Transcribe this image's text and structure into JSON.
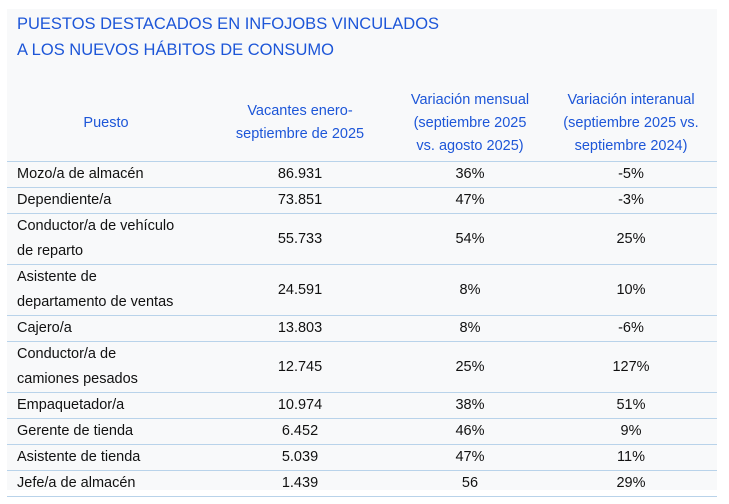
{
  "title": [
    "PUESTOS DESTACADOS EN INFOJOBS VINCULADOS",
    "A LOS NUEVOS HÁBITOS DE CONSUMO"
  ],
  "headers": [
    [
      "Puesto"
    ],
    [
      "Vacantes enero-",
      "septiembre de 2025"
    ],
    [
      "Variación mensual",
      "(septiembre 2025",
      "vs. agosto 2025)"
    ],
    [
      "Variación interanual",
      "(septiembre 2025 vs.",
      "septiembre 2024)"
    ]
  ],
  "rows": [
    {
      "puesto": [
        "Mozo/a de almacén"
      ],
      "vacantes": "86.931",
      "mensual": "36%",
      "interanual": "-5%"
    },
    {
      "puesto": [
        "Dependiente/a"
      ],
      "vacantes": "73.851",
      "mensual": "47%",
      "interanual": "-3%"
    },
    {
      "puesto": [
        "Conductor/a de vehículo",
        "de reparto"
      ],
      "vacantes": "55.733",
      "mensual": "54%",
      "interanual": "25%"
    },
    {
      "puesto": [
        "Asistente de",
        "departamento de ventas"
      ],
      "vacantes": "24.591",
      "mensual": "8%",
      "interanual": "10%"
    },
    {
      "puesto": [
        "Cajero/a"
      ],
      "vacantes": "13.803",
      "mensual": "8%",
      "interanual": "-6%"
    },
    {
      "puesto": [
        "Conductor/a de",
        "camiones pesados"
      ],
      "vacantes": "12.745",
      "mensual": "25%",
      "interanual": "127%"
    },
    {
      "puesto": [
        "Empaquetador/a"
      ],
      "vacantes": "10.974",
      "mensual": "38%",
      "interanual": "51%"
    },
    {
      "puesto": [
        "Gerente de tienda"
      ],
      "vacantes": "6.452",
      "mensual": "46%",
      "interanual": "9%"
    },
    {
      "puesto": [
        "Asistente de tienda"
      ],
      "vacantes": "5.039",
      "mensual": "47%",
      "interanual": "11%"
    },
    {
      "puesto": [
        "Jefe/a de almacén"
      ],
      "vacantes": "1.439",
      "mensual": "56",
      "interanual": "29%"
    }
  ]
}
